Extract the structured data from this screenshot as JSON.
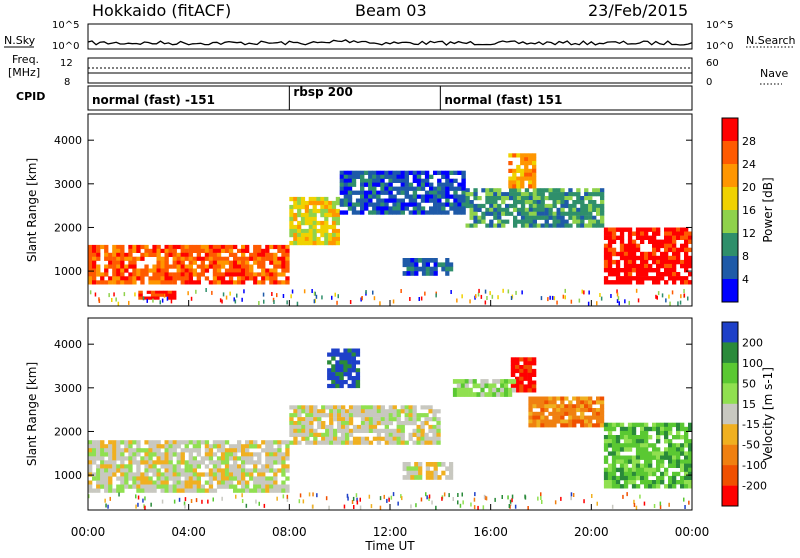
{
  "header": {
    "title_left": "Hokkaido (fitACF)",
    "title_center": "Beam 03",
    "title_right": "23/Feb/2015"
  },
  "strips": {
    "nsky_label": "N.Sky",
    "nsearch_label": "N.Search",
    "nsky_ticks": [
      "10^5",
      "10^0"
    ],
    "nsearch_ticks": [
      "10^5",
      "10^0"
    ],
    "freq_label_line1": "Freq.",
    "freq_label_line2": "[MHz]",
    "freq_ticks": [
      "12",
      "8"
    ],
    "nave_label": "Nave",
    "nave_ticks": [
      "60",
      "0"
    ],
    "cpid_label": "CPID",
    "cpid_segments": [
      {
        "label": "normal (fast) -151",
        "start": 0,
        "end": 8
      },
      {
        "label": "rbsp 200",
        "start": 8,
        "end": 14
      },
      {
        "label": "normal (fast) 151",
        "start": 14,
        "end": 24
      }
    ]
  },
  "chart_data": [
    {
      "type": "heatmap",
      "name": "Power",
      "ylabel": "Slant Range [km]",
      "ylim": [
        200,
        4600
      ],
      "xlim": [
        0,
        24
      ],
      "y_ticks": [
        1000,
        2000,
        3000,
        4000
      ],
      "colorbar_label": "Power [dB]",
      "colorbar_ticks": [
        "28",
        "24",
        "20",
        "16",
        "12",
        "8",
        "4"
      ],
      "colors": [
        "#ff0000",
        "#ff5a00",
        "#ff9600",
        "#f0d200",
        "#8fd24b",
        "#2f8f6b",
        "#1e5aa8",
        "#0000ff"
      ],
      "regions": [
        {
          "t0": 0,
          "t1": 8,
          "r0": 700,
          "r1": 1600,
          "level": 1
        },
        {
          "t0": 8,
          "t1": 10,
          "r0": 1600,
          "r1": 2700,
          "level": 3
        },
        {
          "t0": 10,
          "t1": 15,
          "r0": 2300,
          "r1": 3300,
          "level": 6
        },
        {
          "t0": 15,
          "t1": 20.5,
          "r0": 2000,
          "r1": 2900,
          "level": 5
        },
        {
          "t0": 20.5,
          "t1": 24,
          "r0": 700,
          "r1": 2000,
          "level": 0
        },
        {
          "t0": 12.5,
          "t1": 14.5,
          "r0": 900,
          "r1": 1300,
          "level": 6
        },
        {
          "t0": 16.7,
          "t1": 17.8,
          "r0": 2900,
          "r1": 3700,
          "level": 2
        },
        {
          "t0": 2,
          "t1": 3.5,
          "r0": 350,
          "r1": 550,
          "level": 0
        }
      ]
    },
    {
      "type": "heatmap",
      "name": "Velocity",
      "ylabel": "Slant Range [km]",
      "xlabel": "Time UT",
      "ylim": [
        200,
        4600
      ],
      "xlim": [
        0,
        24
      ],
      "y_ticks": [
        1000,
        2000,
        3000,
        4000
      ],
      "x_ticks": [
        "00:00",
        "04:00",
        "08:00",
        "12:00",
        "16:00",
        "20:00",
        "00:00"
      ],
      "colorbar_label": "Velocity [m s-1]",
      "colorbar_ticks": [
        "200",
        "100",
        "50",
        "15",
        "-15",
        "-50",
        "-100",
        "-200"
      ],
      "colors": [
        "#1e40c8",
        "#2a8a3a",
        "#5ac832",
        "#90e050",
        "#c8c8c0",
        "#f0b020",
        "#f08010",
        "#f05000",
        "#ff0000"
      ],
      "regions": [
        {
          "t0": 0,
          "t1": 8,
          "r0": 600,
          "r1": 1800,
          "level": 4
        },
        {
          "t0": 8,
          "t1": 14,
          "r0": 1700,
          "r1": 2600,
          "level": 4
        },
        {
          "t0": 9.5,
          "t1": 10.8,
          "r0": 3000,
          "r1": 3900,
          "level": 0
        },
        {
          "t0": 16.8,
          "t1": 17.8,
          "r0": 2900,
          "r1": 3700,
          "level": 8
        },
        {
          "t0": 17.5,
          "t1": 20.5,
          "r0": 2100,
          "r1": 2800,
          "level": 6
        },
        {
          "t0": 20.5,
          "t1": 24,
          "r0": 700,
          "r1": 2200,
          "level": 2
        },
        {
          "t0": 12.5,
          "t1": 14.5,
          "r0": 900,
          "r1": 1300,
          "level": 4
        },
        {
          "t0": 14.5,
          "t1": 17,
          "r0": 2800,
          "r1": 3200,
          "level": 3
        }
      ]
    }
  ]
}
